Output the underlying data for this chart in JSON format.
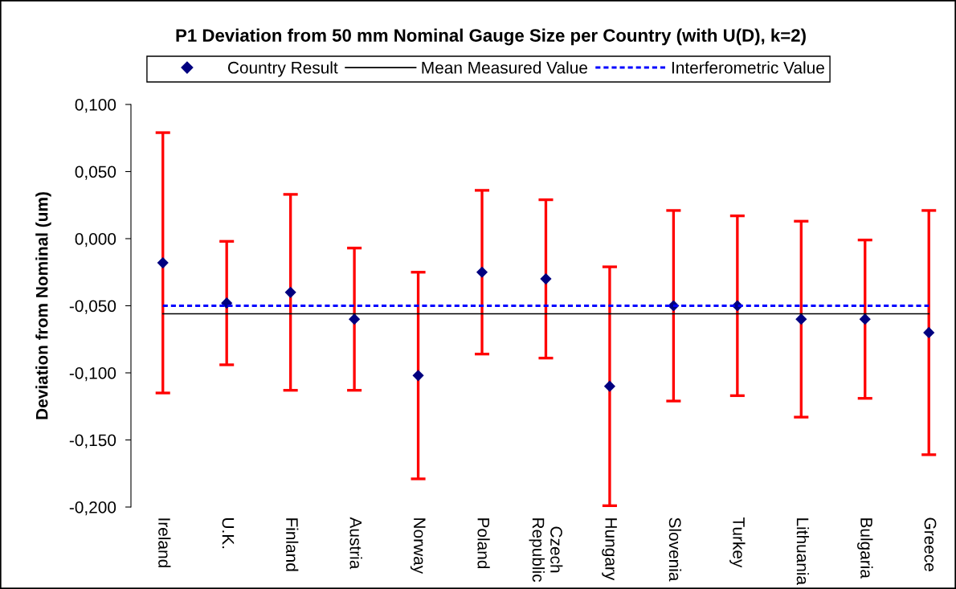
{
  "chart_data": {
    "type": "scatter",
    "title": "P1 Deviation from 50 mm Nominal Gauge Size per Country (with U(D), k=2)",
    "ylabel": "Deviation from Nominal (um)",
    "categories": [
      "Ireland",
      "U.K.",
      "Finland",
      "Austria",
      "Norway",
      "Poland",
      "Czech Republic",
      "Hungary",
      "Slovenia",
      "Turkey",
      "Lithuania",
      "Bulgaria",
      "Greece"
    ],
    "series": [
      {
        "name": "Country Result",
        "color": "#000080",
        "marker": "diamond",
        "values": [
          -0.018,
          -0.048,
          -0.04,
          -0.06,
          -0.102,
          -0.025,
          -0.03,
          -0.11,
          -0.05,
          -0.05,
          -0.06,
          -0.06,
          -0.07
        ],
        "errors": [
          0.097,
          0.046,
          0.073,
          0.053,
          0.077,
          0.061,
          0.059,
          0.089,
          0.071,
          0.067,
          0.073,
          0.059,
          0.091
        ]
      },
      {
        "name": "Mean Measured Value",
        "type": "line",
        "color": "#000000",
        "line_style": "solid",
        "values": [
          -0.056,
          -0.056,
          -0.056,
          -0.056,
          -0.056,
          -0.056,
          -0.056,
          -0.056,
          -0.056,
          -0.056,
          -0.056,
          -0.056,
          -0.056
        ]
      },
      {
        "name": "Interferometric Value",
        "type": "line",
        "color": "#0000ff",
        "line_style": "dashed",
        "values": [
          -0.05,
          -0.05,
          -0.05,
          -0.05,
          -0.05,
          -0.05,
          -0.05,
          -0.05,
          -0.05,
          -0.05,
          -0.05,
          -0.05,
          -0.05
        ]
      }
    ],
    "ylim": [
      -0.2,
      0.1
    ],
    "yticks": [
      {
        "value": 0.1,
        "label": "0,100"
      },
      {
        "value": 0.05,
        "label": "0,050"
      },
      {
        "value": 0.0,
        "label": "0,000"
      },
      {
        "value": -0.05,
        "label": "-0,050"
      },
      {
        "value": -0.1,
        "label": "-0,100"
      },
      {
        "value": -0.15,
        "label": "-0,150"
      },
      {
        "value": -0.2,
        "label": "-0,200"
      }
    ],
    "legend": "top"
  }
}
